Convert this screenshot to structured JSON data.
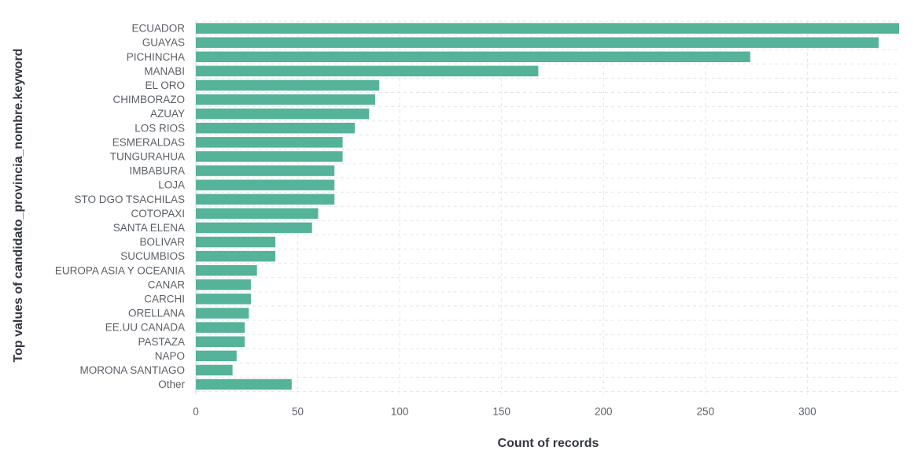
{
  "chart_data": {
    "type": "bar",
    "orientation": "horizontal",
    "title": "",
    "xlabel": "Count of records",
    "ylabel": "Top values of candidato_provincia_nombre.keyword",
    "categories": [
      "ECUADOR",
      "GUAYAS",
      "PICHINCHA",
      "MANABI",
      "EL ORO",
      "CHIMBORAZO",
      "AZUAY",
      "LOS RIOS",
      "ESMERALDAS",
      "TUNGURAHUA",
      "IMBABURA",
      "LOJA",
      "STO DGO TSACHILAS",
      "COTOPAXI",
      "SANTA ELENA",
      "BOLIVAR",
      "SUCUMBIOS",
      "EUROPA ASIA Y OCEANIA",
      "CANAR",
      "CARCHI",
      "ORELLANA",
      "EE.UU CANADA",
      "PASTAZA",
      "NAPO",
      "MORONA SANTIAGO",
      "Other"
    ],
    "values": [
      345,
      335,
      272,
      168,
      90,
      88,
      85,
      78,
      72,
      72,
      68,
      68,
      68,
      60,
      57,
      39,
      39,
      30,
      27,
      27,
      26,
      24,
      24,
      20,
      18,
      47
    ],
    "xlim": [
      0,
      345
    ],
    "xticks": [
      "0",
      "50",
      "100",
      "150",
      "200",
      "250",
      "300"
    ],
    "tick_values": [
      0,
      50,
      100,
      150,
      200,
      250,
      300
    ],
    "grid": true,
    "legend": "none",
    "bar_color": "#54b399"
  }
}
